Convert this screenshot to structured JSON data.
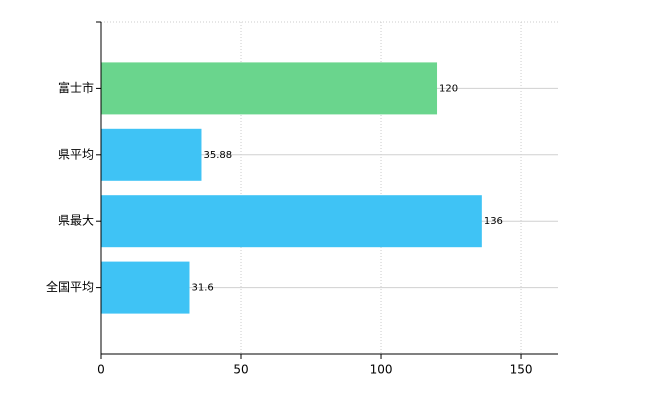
{
  "chart_data": {
    "type": "hbar",
    "categories": [
      "富士市",
      "県平均",
      "県最大",
      "全国平均"
    ],
    "values": [
      120,
      35.88,
      136,
      31.6
    ],
    "colors": [
      "#6ad58d",
      "#3fc3f5",
      "#3fc3f5",
      "#3fc3f5"
    ],
    "xlim": [
      0,
      163.2
    ],
    "xticks": [
      0,
      50,
      100,
      150
    ],
    "grid": true
  }
}
